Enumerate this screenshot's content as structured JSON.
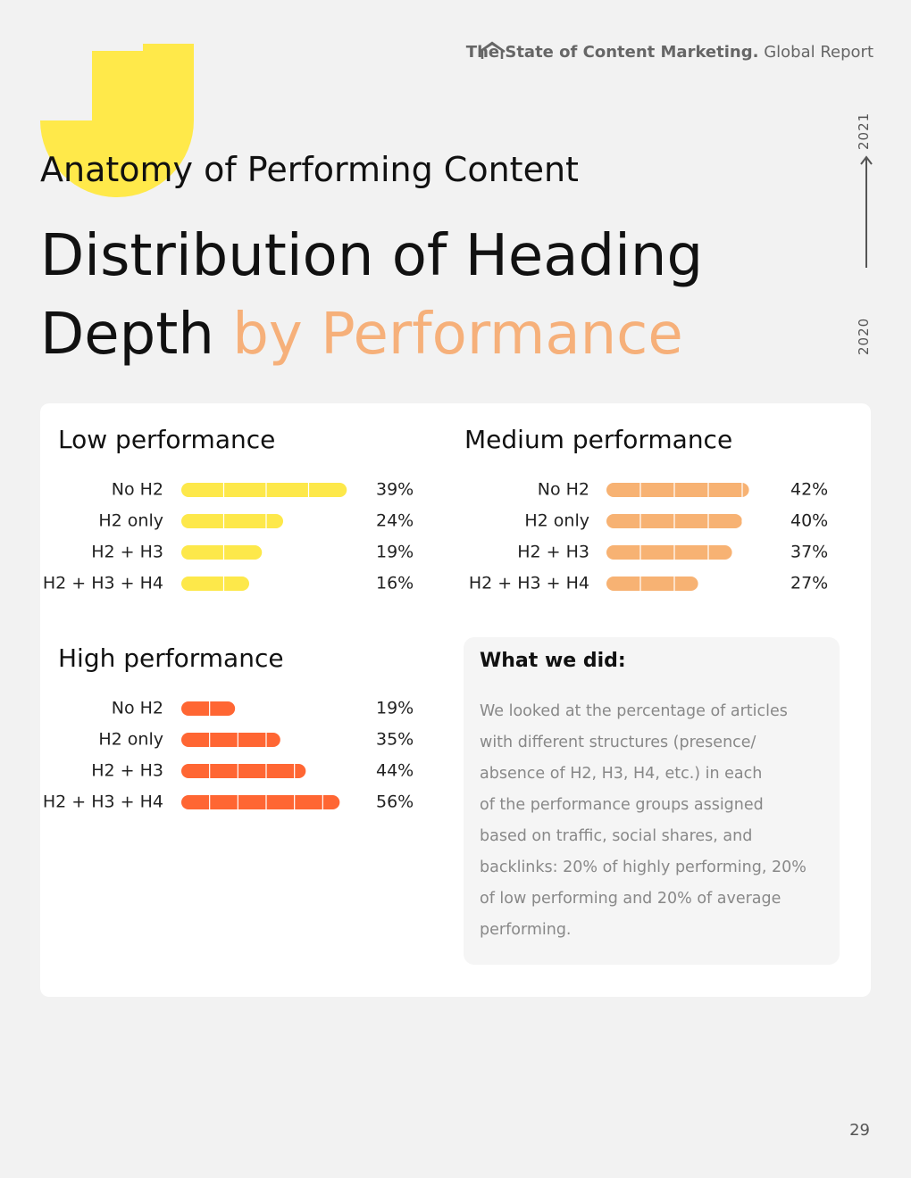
{
  "header": {
    "brand": "The State of Content Marketing.",
    "report": "Global Report"
  },
  "timeline": {
    "start": "2020",
    "end": "2021"
  },
  "section_title": "Anatomy of Performing Content",
  "title": {
    "line1": "Distribution of Heading",
    "line2_dark": "Depth",
    "line2_accent": "by Performance"
  },
  "chart_data": [
    {
      "type": "bar",
      "title": "Low performance",
      "categories": [
        "No H2",
        "H2 only",
        "H2 + H3",
        "H2 + H3 + H4"
      ],
      "values": [
        39,
        24,
        19,
        16
      ],
      "value_labels": [
        "39%",
        "24%",
        "19%",
        "16%"
      ],
      "color": "#fde84a",
      "xlim": [
        0,
        40
      ],
      "xticks": [
        0,
        10,
        20,
        30,
        40
      ]
    },
    {
      "type": "bar",
      "title": "Medium performance",
      "categories": [
        "No H2",
        "H2 only",
        "H2 + H3",
        "H2 + H3 + H4"
      ],
      "values": [
        42,
        40,
        37,
        27
      ],
      "value_labels": [
        "42%",
        "40%",
        "37%",
        "27%"
      ],
      "color": "#f7b273",
      "xlim": [
        0,
        50
      ],
      "xticks": [
        0,
        10,
        20,
        30,
        40,
        50
      ]
    },
    {
      "type": "bar",
      "title": "High performance",
      "categories": [
        "No H2",
        "H2 only",
        "H2 + H3",
        "H2 + H3 + H4"
      ],
      "values": [
        19,
        35,
        44,
        56
      ],
      "value_labels": [
        "19%",
        "35%",
        "44%",
        "56%"
      ],
      "color": "#ff6633",
      "xlim": [
        0,
        60
      ],
      "xticks": [
        0,
        10,
        20,
        30,
        40,
        50,
        60
      ]
    }
  ],
  "note": {
    "title": "What we did:",
    "lines": [
      "We looked at the percentage of articles",
      "with different structures (presence/",
      "absence of H2, H3, H4, etc.) in each",
      "of the performance groups assigned",
      "based on traffic, social shares, and",
      "backlinks: 20% of highly performing, 20%",
      "of low performing and 20% of average",
      "performing."
    ]
  },
  "page_number": "29"
}
